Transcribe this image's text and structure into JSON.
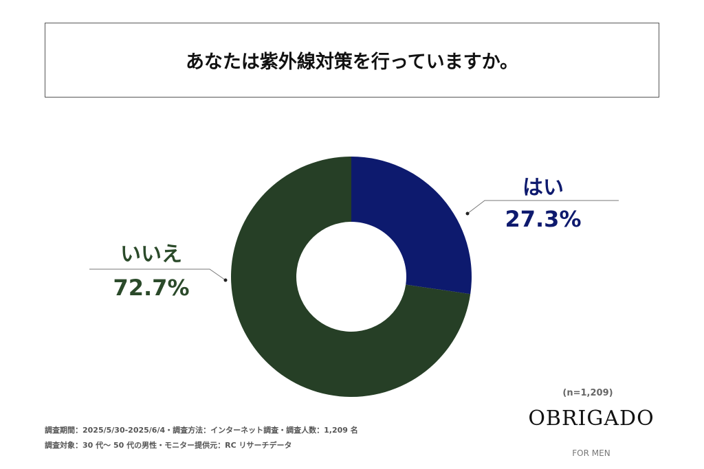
{
  "title": "あなたは紫外線対策を行っていますか。",
  "chart_data": {
    "type": "pie",
    "donut": true,
    "title": "あなたは紫外線対策を行っていますか。",
    "categories": [
      "はい",
      "いいえ"
    ],
    "values": [
      27.3,
      72.7
    ],
    "labels": [
      "27.3%",
      "72.7%"
    ],
    "colors": [
      "#0d1a6e",
      "#263f26"
    ],
    "legend": "none"
  },
  "sample_size": "(n=1,209)",
  "notes": [
    "調査期間：2025/5/30-2025/6/4・調査方法：インターネット調査・調査人数：1,209 名",
    "調査対象：30 代～ 50 代の男性・モニター提供元：RC リサーチデータ"
  ],
  "brand": {
    "name": "OBRIGADO",
    "sub": "FOR MEN"
  }
}
